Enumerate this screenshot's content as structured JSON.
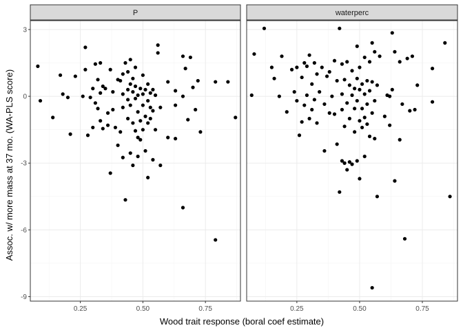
{
  "chart_data": {
    "type": "scatter",
    "xlabel": "Wood trait response (boral coef estimate)",
    "ylabel": "Assoc. w/ more mass at 37 mo. (WA-PLS score)",
    "xlim": [
      0.05,
      0.89
    ],
    "ylim": [
      -9.2,
      3.4
    ],
    "x_ticks": [
      0.25,
      0.5,
      0.75
    ],
    "x_tick_labels": [
      "0.25",
      "0.50",
      "0.75"
    ],
    "y_ticks": [
      3,
      0,
      -3,
      -6,
      -9
    ],
    "y_tick_labels": [
      "3",
      "0",
      "-3",
      "-6",
      "-9"
    ],
    "grid": true,
    "panels": [
      {
        "name": "P",
        "points": [
          [
            0.08,
            1.35
          ],
          [
            0.09,
            -0.2
          ],
          [
            0.14,
            -0.95
          ],
          [
            0.17,
            0.95
          ],
          [
            0.18,
            0.1
          ],
          [
            0.2,
            -0.05
          ],
          [
            0.21,
            -1.7
          ],
          [
            0.23,
            0.9
          ],
          [
            0.26,
            0.0
          ],
          [
            0.27,
            1.2
          ],
          [
            0.27,
            2.2
          ],
          [
            0.28,
            -1.75
          ],
          [
            0.29,
            -0.05
          ],
          [
            0.3,
            0.35
          ],
          [
            0.3,
            -1.4
          ],
          [
            0.31,
            1.45
          ],
          [
            0.31,
            -0.3
          ],
          [
            0.32,
            0.75
          ],
          [
            0.32,
            -0.55
          ],
          [
            0.33,
            1.5
          ],
          [
            0.33,
            0.15
          ],
          [
            0.33,
            -1.1
          ],
          [
            0.34,
            0.45
          ],
          [
            0.34,
            -1.45
          ],
          [
            0.35,
            0.35
          ],
          [
            0.36,
            -0.75
          ],
          [
            0.36,
            -1.3
          ],
          [
            0.37,
            1.2
          ],
          [
            0.37,
            -3.45
          ],
          [
            0.38,
            0.2
          ],
          [
            0.38,
            -0.6
          ],
          [
            0.39,
            -1.4
          ],
          [
            0.4,
            0.75
          ],
          [
            0.4,
            -2.2
          ],
          [
            0.41,
            0.7
          ],
          [
            0.41,
            -1.6
          ],
          [
            0.42,
            1.0
          ],
          [
            0.42,
            0.1
          ],
          [
            0.42,
            -0.5
          ],
          [
            0.42,
            -2.75
          ],
          [
            0.43,
            1.5
          ],
          [
            0.43,
            -4.65
          ],
          [
            0.44,
            1.1
          ],
          [
            0.44,
            0.3
          ],
          [
            0.44,
            -0.15
          ],
          [
            0.44,
            -1.0
          ],
          [
            0.45,
            1.65
          ],
          [
            0.45,
            0.55
          ],
          [
            0.45,
            -0.4
          ],
          [
            0.45,
            -2.55
          ],
          [
            0.46,
            0.8
          ],
          [
            0.46,
            0.2
          ],
          [
            0.46,
            -1.2
          ],
          [
            0.46,
            -3.1
          ],
          [
            0.47,
            1.3
          ],
          [
            0.47,
            0.45
          ],
          [
            0.47,
            -0.1
          ],
          [
            0.47,
            -1.55
          ],
          [
            0.48,
            0.05
          ],
          [
            0.48,
            -0.7
          ],
          [
            0.48,
            -1.85
          ],
          [
            0.48,
            -2.7
          ],
          [
            0.49,
            0.35
          ],
          [
            0.49,
            -1.1
          ],
          [
            0.49,
            -1.95
          ],
          [
            0.5,
            0.95
          ],
          [
            0.5,
            0.1
          ],
          [
            0.5,
            -0.4
          ],
          [
            0.5,
            -1.5
          ],
          [
            0.51,
            0.3
          ],
          [
            0.51,
            -0.9
          ],
          [
            0.51,
            -2.45
          ],
          [
            0.52,
            0.55
          ],
          [
            0.52,
            -0.2
          ],
          [
            0.52,
            -1.2
          ],
          [
            0.52,
            -3.65
          ],
          [
            0.53,
            0.15
          ],
          [
            0.53,
            -0.5
          ],
          [
            0.53,
            -1.0
          ],
          [
            0.54,
            0.3
          ],
          [
            0.54,
            -0.65
          ],
          [
            0.54,
            -2.85
          ],
          [
            0.55,
            0.05
          ],
          [
            0.55,
            -1.5
          ],
          [
            0.56,
            1.95
          ],
          [
            0.56,
            2.3
          ],
          [
            0.57,
            -0.5
          ],
          [
            0.57,
            -3.1
          ],
          [
            0.6,
            0.65
          ],
          [
            0.6,
            -1.85
          ],
          [
            0.63,
            0.25
          ],
          [
            0.63,
            -0.4
          ],
          [
            0.63,
            -1.9
          ],
          [
            0.66,
            1.8
          ],
          [
            0.66,
            0.0
          ],
          [
            0.66,
            -5.0
          ],
          [
            0.67,
            1.25
          ],
          [
            0.68,
            -1.05
          ],
          [
            0.69,
            1.75
          ],
          [
            0.7,
            0.4
          ],
          [
            0.71,
            -0.6
          ],
          [
            0.72,
            0.7
          ],
          [
            0.73,
            -1.6
          ],
          [
            0.79,
            -6.45
          ],
          [
            0.79,
            0.65
          ],
          [
            0.84,
            0.65
          ],
          [
            0.87,
            -0.95
          ]
        ]
      },
      {
        "name": "waterperc",
        "points": [
          [
            0.07,
            0.05
          ],
          [
            0.08,
            1.9
          ],
          [
            0.12,
            3.05
          ],
          [
            0.15,
            1.3
          ],
          [
            0.16,
            0.8
          ],
          [
            0.18,
            0.0
          ],
          [
            0.19,
            1.8
          ],
          [
            0.21,
            -0.7
          ],
          [
            0.23,
            1.2
          ],
          [
            0.24,
            0.2
          ],
          [
            0.25,
            -0.2
          ],
          [
            0.25,
            1.3
          ],
          [
            0.26,
            -1.75
          ],
          [
            0.27,
            -1.15
          ],
          [
            0.27,
            0.85
          ],
          [
            0.28,
            1.5
          ],
          [
            0.28,
            -0.4
          ],
          [
            0.29,
            1.35
          ],
          [
            0.29,
            0.05
          ],
          [
            0.3,
            -1.0
          ],
          [
            0.3,
            1.85
          ],
          [
            0.31,
            0.55
          ],
          [
            0.31,
            -0.6
          ],
          [
            0.32,
            1.5
          ],
          [
            0.32,
            -0.15
          ],
          [
            0.33,
            1.0
          ],
          [
            0.33,
            -1.2
          ],
          [
            0.34,
            0.2
          ],
          [
            0.35,
            1.3
          ],
          [
            0.36,
            -0.35
          ],
          [
            0.36,
            -2.45
          ],
          [
            0.37,
            0.9
          ],
          [
            0.38,
            1.1
          ],
          [
            0.38,
            -0.75
          ],
          [
            0.39,
            0.0
          ],
          [
            0.4,
            1.6
          ],
          [
            0.4,
            -0.8
          ],
          [
            0.41,
            -2.15
          ],
          [
            0.41,
            0.7
          ],
          [
            0.42,
            -4.3
          ],
          [
            0.42,
            3.05
          ],
          [
            0.43,
            1.45
          ],
          [
            0.43,
            0.1
          ],
          [
            0.43,
            -0.6
          ],
          [
            0.43,
            -2.9
          ],
          [
            0.44,
            0.75
          ],
          [
            0.44,
            -1.35
          ],
          [
            0.44,
            -3.0
          ],
          [
            0.45,
            1.55
          ],
          [
            0.45,
            -0.3
          ],
          [
            0.45,
            -3.3
          ],
          [
            0.46,
            0.5
          ],
          [
            0.46,
            -1.0
          ],
          [
            0.46,
            -2.95
          ],
          [
            0.47,
            1.15
          ],
          [
            0.47,
            0.05
          ],
          [
            0.47,
            -3.05
          ],
          [
            0.48,
            0.35
          ],
          [
            0.48,
            -0.55
          ],
          [
            0.48,
            -1.6
          ],
          [
            0.49,
            2.25
          ],
          [
            0.49,
            0.8
          ],
          [
            0.49,
            -0.2
          ],
          [
            0.49,
            -2.9
          ],
          [
            0.5,
            1.3
          ],
          [
            0.5,
            0.3
          ],
          [
            0.5,
            -1.1
          ],
          [
            0.5,
            -3.7
          ],
          [
            0.51,
            0.55
          ],
          [
            0.51,
            -0.55
          ],
          [
            0.51,
            -1.4
          ],
          [
            0.52,
            1.75
          ],
          [
            0.52,
            0.1
          ],
          [
            0.52,
            -0.95
          ],
          [
            0.52,
            -2.7
          ],
          [
            0.53,
            0.7
          ],
          [
            0.53,
            -0.35
          ],
          [
            0.53,
            -1.25
          ],
          [
            0.54,
            1.55
          ],
          [
            0.54,
            0.25
          ],
          [
            0.54,
            -1.8
          ],
          [
            0.55,
            2.4
          ],
          [
            0.55,
            0.65
          ],
          [
            0.55,
            -0.75
          ],
          [
            0.55,
            -8.6
          ],
          [
            0.56,
            2.0
          ],
          [
            0.56,
            -0.2
          ],
          [
            0.56,
            -1.9
          ],
          [
            0.57,
            0.5
          ],
          [
            0.57,
            -4.5
          ],
          [
            0.58,
            1.8
          ],
          [
            0.6,
            -0.9
          ],
          [
            0.61,
            0.05
          ],
          [
            0.62,
            0.0
          ],
          [
            0.62,
            -1.3
          ],
          [
            0.63,
            2.85
          ],
          [
            0.63,
            0.3
          ],
          [
            0.64,
            2.0
          ],
          [
            0.64,
            -3.8
          ],
          [
            0.66,
            1.55
          ],
          [
            0.66,
            -1.95
          ],
          [
            0.67,
            -0.35
          ],
          [
            0.68,
            -6.4
          ],
          [
            0.69,
            1.7
          ],
          [
            0.7,
            -0.65
          ],
          [
            0.71,
            1.8
          ],
          [
            0.72,
            -0.6
          ],
          [
            0.73,
            0.5
          ],
          [
            0.79,
            1.25
          ],
          [
            0.79,
            -0.25
          ],
          [
            0.84,
            2.4
          ],
          [
            0.86,
            -4.5
          ]
        ]
      }
    ]
  }
}
